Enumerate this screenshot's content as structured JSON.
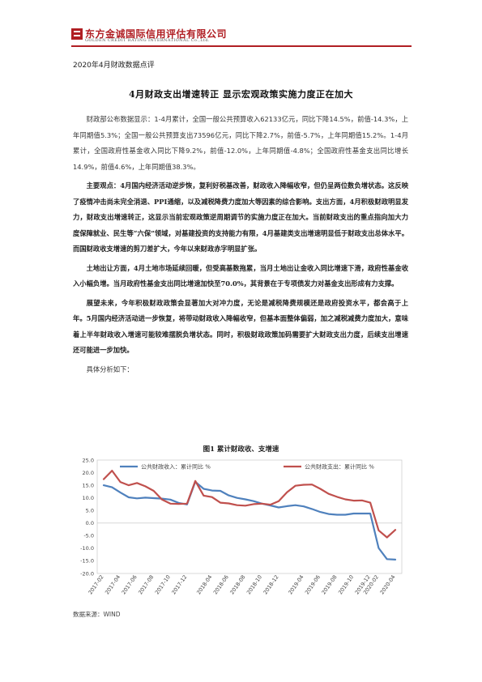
{
  "header": {
    "company_cn": "东方金诚国际信用评估有限公司",
    "company_en": "GOLDEN CREDIT RATING INTERNATIONAL Co.,Ltd."
  },
  "report_subtitle": "2020年4月财政数据点评",
  "title": "4月财政支出增速转正  显示宏观政策实施力度正在加大",
  "paragraphs": [
    "财政部公布数据显示：1-4月累计，全国一般公共预算收入62133亿元，同比下降14.5%，前值-14.3%，上年同期值5.3%；全国一般公共预算支出73596亿元，同比下降2.7%，前值-5.7%，上年同期值15.2%。1-4月累计，全国政府性基金收入同比下降9.2%，前值-12.0%，上年同期值-4.8%；全国政府性基金支出同比增长14.9%，前值4.6%，上年同期值38.3%。",
    "主要观点：4月国内经济活动逆步恢，复利好税基改善，财政收入降幅收窄，但仍呈两位数负增状态。这反映了疫情冲击尚未完全消退、PPI通缩，以及减税降费力度加大等因素的综合影响。支出方面，4月积极财政明显发力，财政支出增速转正，这显示当前宏观政策逆周期调节的实施力度正在加大。当前财政支出的重点指向加大力度保障就业、民生等“六保”领域，对基建投资的支持能力有限，4月基建类支出增速明显低于财政支出总体水平。而国财政收支增速的剪刀差扩大，今年以来财政赤字明显扩张。",
    "土地出让方面，4月土地市场延续回暖，但受高基数拖累，当月土地出让金收入同比增速下滑，政府性基金收入小幅负增。当月政府性基金支出同比增速加快至70.0%，其背景在于专项债发力对基金支出形成有力支撑。",
    "展望未来，今年积极财政政策会显著加大对冲力度，无论是减税降费规模还是政府投资水平，都会高于上年。5月国内经济活动进一步恢复，将带动财政收入降幅收窄，但基本面整体偏弱，加之减税减费力度加大，意味着上半年财政收入增速可能较难摆脱负增状态。同时，积极财政政策加码需要扩大财政支出力度，后续支出增速还可能进一步加快。",
    "具体分析如下："
  ],
  "figure_title": "图1  累计财政收、支增速",
  "source": "数据来源：WIND",
  "chart_data": {
    "type": "line",
    "title": "图1  累计财政收、支增速",
    "xlabel": "",
    "ylabel": "",
    "ylim": [
      -20,
      25
    ],
    "yticks": [
      -20,
      -15,
      -10,
      -5,
      0,
      5,
      10,
      15,
      20,
      25
    ],
    "grid": false,
    "legend_position": "top",
    "x": [
      "2017-02",
      "2017-03",
      "2017-04",
      "2017-05",
      "2017-06",
      "2017-07",
      "2017-08",
      "2017-09",
      "2017-10",
      "2017-11",
      "2017-12",
      "2018-02",
      "2018-03",
      "2018-04",
      "2018-05",
      "2018-06",
      "2018-07",
      "2018-08",
      "2018-09",
      "2018-10",
      "2018-11",
      "2018-12",
      "2019-02",
      "2019-03",
      "2019-04",
      "2019-05",
      "2019-06",
      "2019-07",
      "2019-08",
      "2019-09",
      "2019-10",
      "2019-11",
      "2019-12",
      "2020-02",
      "2020-03",
      "2020-04"
    ],
    "x_tick_labels": [
      "2017-02",
      "2017-04",
      "2017-06",
      "2017-08",
      "2017-10",
      "2017-12",
      "2018-04",
      "2018-06",
      "2018-08",
      "2018-10",
      "2018-12",
      "2019-04",
      "2019-06",
      "2019-08",
      "2019-10",
      "2019-12",
      "2020-02",
      "2020-04"
    ],
    "series": [
      {
        "name": "公共财政收入：累计同比 %",
        "color": "#4f81bd",
        "values": [
          15.0,
          14.2,
          12.1,
          10.2,
          9.8,
          10.1,
          9.9,
          9.7,
          9.3,
          8.0,
          7.4,
          16.4,
          13.6,
          12.9,
          12.8,
          11.0,
          10.0,
          9.4,
          8.7,
          7.7,
          7.0,
          6.2,
          6.7,
          7.1,
          6.6,
          5.6,
          4.4,
          3.6,
          3.3,
          3.3,
          3.8,
          3.8,
          3.8,
          -9.9,
          -14.3,
          -14.5
        ]
      },
      {
        "name": "公共财政支出：累计同比 %",
        "color": "#c0504d",
        "values": [
          17.4,
          20.8,
          16.3,
          15.0,
          15.9,
          14.6,
          12.8,
          9.3,
          7.7,
          7.6,
          7.7,
          16.7,
          10.9,
          10.3,
          8.1,
          7.8,
          7.1,
          6.9,
          7.5,
          7.7,
          7.3,
          8.7,
          12.2,
          14.8,
          15.2,
          15.3,
          13.6,
          11.6,
          10.4,
          9.4,
          8.9,
          9.0,
          8.1,
          -2.9,
          -5.7,
          -2.7
        ]
      }
    ]
  }
}
